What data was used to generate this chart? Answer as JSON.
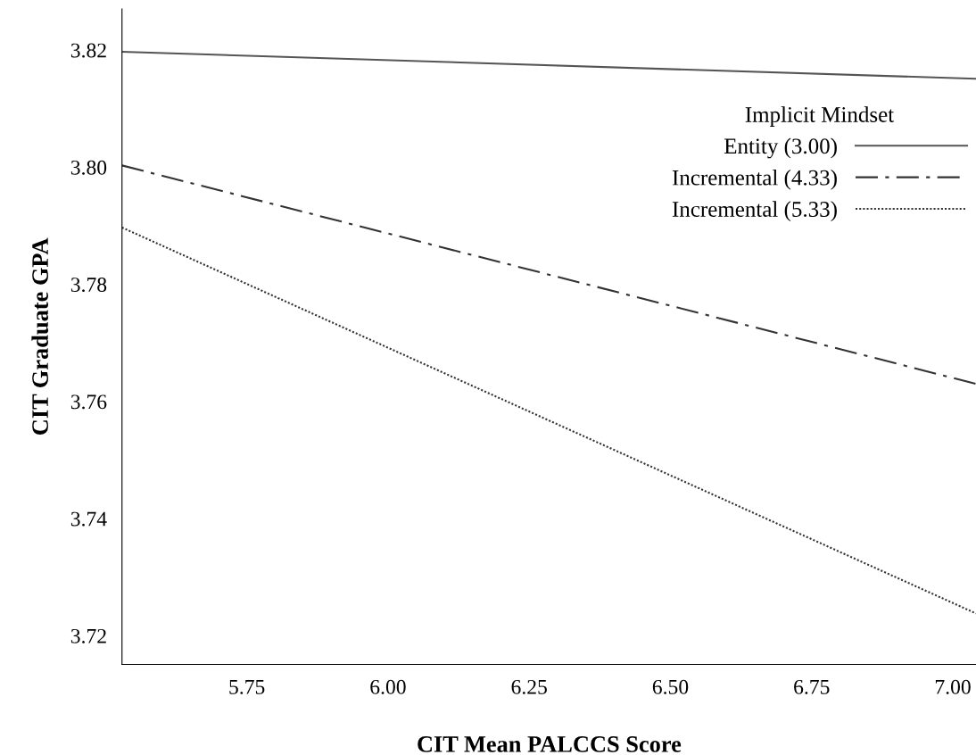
{
  "chart_data": {
    "type": "line",
    "xlabel": "CIT Mean PALCCS Score",
    "ylabel": "CIT Graduate GPA",
    "legend_title": "Implicit Mindset",
    "x": [
      5.529,
      7.041
    ],
    "series": [
      {
        "name": "Entity (3.00)",
        "color": "#555555",
        "line_style": "solid",
        "values": [
          3.8197,
          3.8151
        ]
      },
      {
        "name": "Incremental (4.33)",
        "color": "#333333",
        "line_style": "dashdot",
        "values": [
          3.8003,
          3.763
        ]
      },
      {
        "name": "Incremental (5.33)",
        "color": "#333333",
        "line_style": "dotted",
        "values": [
          3.7897,
          3.7238
        ]
      }
    ],
    "xlim": [
      5.529,
      7.041
    ],
    "ylim": [
      3.7151,
      3.827
    ],
    "xticks": [
      5.75,
      {
        "value": 6.0,
        "label": "6.00"
      },
      {
        "value": 6.25,
        "label": "6.25"
      },
      {
        "value": 6.5,
        "label": "6.50"
      },
      6.75,
      {
        "value": 7.0,
        "label": "7.00"
      }
    ],
    "yticks": [
      {
        "value": 3.72,
        "label": "3.72"
      },
      3.74,
      3.76,
      3.78,
      {
        "value": 3.8,
        "label": "3.80"
      },
      3.82
    ],
    "grid": false,
    "legend": "top right"
  }
}
